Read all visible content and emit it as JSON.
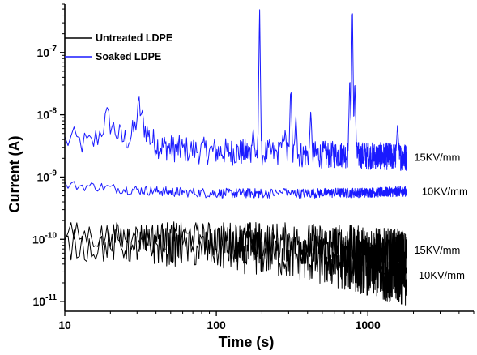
{
  "chart_data": {
    "type": "line",
    "xlabel": "Time (s)",
    "ylabel": "Current (A)",
    "x_scale": "log",
    "y_scale": "log",
    "xlim": [
      10,
      5000
    ],
    "ylim": [
      7e-12,
      6e-07
    ],
    "x_ticks": [
      {
        "value": 10,
        "label": "10"
      },
      {
        "value": 100,
        "label": "100"
      },
      {
        "value": 1000,
        "label": "1000"
      }
    ],
    "y_ticks": [
      {
        "value": 1e-11,
        "base": "10",
        "exp": "-11"
      },
      {
        "value": 1e-10,
        "base": "10",
        "exp": "-10"
      },
      {
        "value": 1e-09,
        "base": "10",
        "exp": "-9"
      },
      {
        "value": 1e-08,
        "base": "10",
        "exp": "-8"
      },
      {
        "value": 1e-07,
        "base": "10",
        "exp": "-7"
      }
    ],
    "legend": {
      "position": "top-left",
      "entries": [
        {
          "name": "Untreated LDPE",
          "color": "#000000"
        },
        {
          "name": "Soaked LDPE",
          "color": "#1a1aff"
        }
      ]
    },
    "series": [
      {
        "legend": "Soaked LDPE",
        "field": "15KV/mm",
        "color": "#1a1aff",
        "trend": [
          [
            10,
            3.8e-09
          ],
          [
            11,
            4e-09
          ],
          [
            13,
            3.5e-09
          ],
          [
            15,
            3.3e-09
          ],
          [
            17,
            5e-09
          ],
          [
            19,
            9e-09
          ],
          [
            21,
            6e-09
          ],
          [
            24,
            4e-09
          ],
          [
            27,
            4.2e-09
          ],
          [
            29,
            6e-09
          ],
          [
            31,
            1.4e-08
          ],
          [
            33,
            7e-09
          ],
          [
            37,
            4e-09
          ],
          [
            42,
            3.2e-09
          ],
          [
            50,
            2.9e-09
          ],
          [
            70,
            2.7e-09
          ],
          [
            100,
            2.6e-09
          ],
          [
            150,
            2.5e-09
          ],
          [
            250,
            2.4e-09
          ],
          [
            400,
            2.3e-09
          ],
          [
            700,
            2.3e-09
          ],
          [
            1000,
            2.2e-09
          ],
          [
            1800,
            2.1e-09
          ]
        ],
        "spikes": [
          {
            "t": 175,
            "peak": 6e-09
          },
          {
            "t": 193,
            "peak": 6e-07
          },
          {
            "t": 265,
            "peak": 4e-09
          },
          {
            "t": 275,
            "peak": 5e-09
          },
          {
            "t": 285,
            "peak": 6e-09
          },
          {
            "t": 310,
            "peak": 3.5e-08
          },
          {
            "t": 335,
            "peak": 1e-08
          },
          {
            "t": 420,
            "peak": 1.2e-08
          },
          {
            "t": 760,
            "peak": 4e-08
          },
          {
            "t": 790,
            "peak": 6e-07
          },
          {
            "t": 820,
            "peak": 3.5e-08
          },
          {
            "t": 1570,
            "peak": 7e-09
          }
        ],
        "noise": 0.22
      },
      {
        "legend": "Soaked LDPE",
        "field": "10KV/mm",
        "color": "#1a1aff",
        "trend": [
          [
            10,
            7.5e-10
          ],
          [
            13,
            7.2e-10
          ],
          [
            17,
            7e-10
          ],
          [
            22,
            6.5e-10
          ],
          [
            30,
            6.2e-10
          ],
          [
            50,
            5.8e-10
          ],
          [
            100,
            5.5e-10
          ],
          [
            200,
            5.5e-10
          ],
          [
            400,
            5.5e-10
          ],
          [
            800,
            5.6e-10
          ],
          [
            1200,
            5.7e-10
          ],
          [
            1800,
            5.9e-10
          ]
        ],
        "spikes": [
          {
            "t": 280,
            "peak": 6.8e-10
          }
        ],
        "noise": 0.08
      },
      {
        "legend": "Untreated LDPE",
        "field": "15KV/mm",
        "color": "#000000",
        "trend": [
          [
            10,
            1.2e-10
          ],
          [
            20,
            1.1e-10
          ],
          [
            50,
            1.05e-10
          ],
          [
            100,
            1e-10
          ],
          [
            200,
            9.5e-11
          ],
          [
            400,
            8.5e-11
          ],
          [
            800,
            7.5e-11
          ],
          [
            1200,
            6.5e-11
          ],
          [
            1800,
            6e-11
          ]
        ],
        "spikes": [],
        "noise": 0.38
      },
      {
        "legend": "Untreated LDPE",
        "field": "10KV/mm",
        "color": "#000000",
        "trend": [
          [
            10,
            8e-11
          ],
          [
            30,
            7.8e-11
          ],
          [
            60,
            7.5e-11
          ],
          [
            100,
            7e-11
          ],
          [
            200,
            6e-11
          ],
          [
            400,
            5e-11
          ],
          [
            800,
            3.8e-11
          ],
          [
            1200,
            3e-11
          ],
          [
            1800,
            2.4e-11
          ]
        ],
        "spikes": [],
        "noise": 0.45
      }
    ],
    "annotations": [
      {
        "text": "15KV/mm",
        "t": 2850,
        "y": 2.1e-09
      },
      {
        "text": "10KV/mm",
        "t": 3200,
        "y": 6e-10
      },
      {
        "text": "15KV/mm",
        "t": 2850,
        "y": 6.8e-11
      },
      {
        "text": "10KV/mm",
        "t": 3050,
        "y": 2.7e-11
      }
    ]
  }
}
